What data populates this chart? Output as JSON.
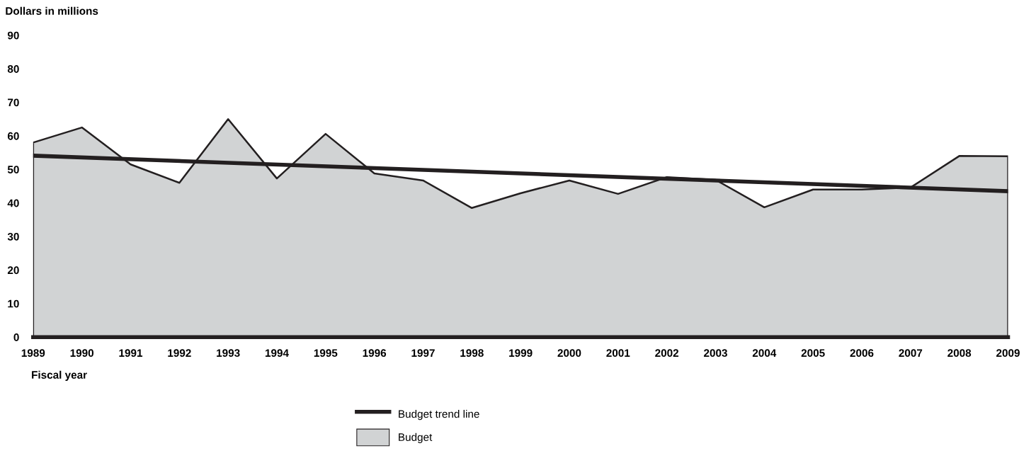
{
  "chart_data": {
    "type": "area",
    "ylabel": "Dollars in millions",
    "xlabel": "Fiscal year",
    "x": [
      1989,
      1990,
      1991,
      1992,
      1993,
      1994,
      1995,
      1996,
      1997,
      1998,
      1999,
      2000,
      2001,
      2002,
      2003,
      2004,
      2005,
      2006,
      2007,
      2008,
      2009
    ],
    "series": [
      {
        "name": "Budget",
        "color": "#d1d3d4",
        "values": [
          58,
          62.5,
          51.5,
          46,
          65,
          47.3,
          60.6,
          48.8,
          46.7,
          38.5,
          42.9,
          46.7,
          42.7,
          47.7,
          46.9,
          38.7,
          44,
          44,
          44.6,
          54,
          53.9
        ]
      },
      {
        "name": "Budget trend line",
        "type": "line",
        "color": "#231f20",
        "x": [
          1989,
          2009
        ],
        "values": [
          54.1,
          43.5
        ]
      }
    ],
    "xlim": [
      1989,
      2009
    ],
    "xticks": [
      1989,
      1990,
      1991,
      1992,
      1993,
      1994,
      1995,
      1996,
      1997,
      1998,
      1999,
      2000,
      2001,
      2002,
      2003,
      2004,
      2005,
      2006,
      2007,
      2008,
      2009
    ],
    "ylim": [
      0,
      90
    ],
    "yticks": [
      0,
      10,
      20,
      30,
      40,
      50,
      60,
      70,
      80,
      90
    ],
    "grid": false,
    "legend": "bottom"
  }
}
